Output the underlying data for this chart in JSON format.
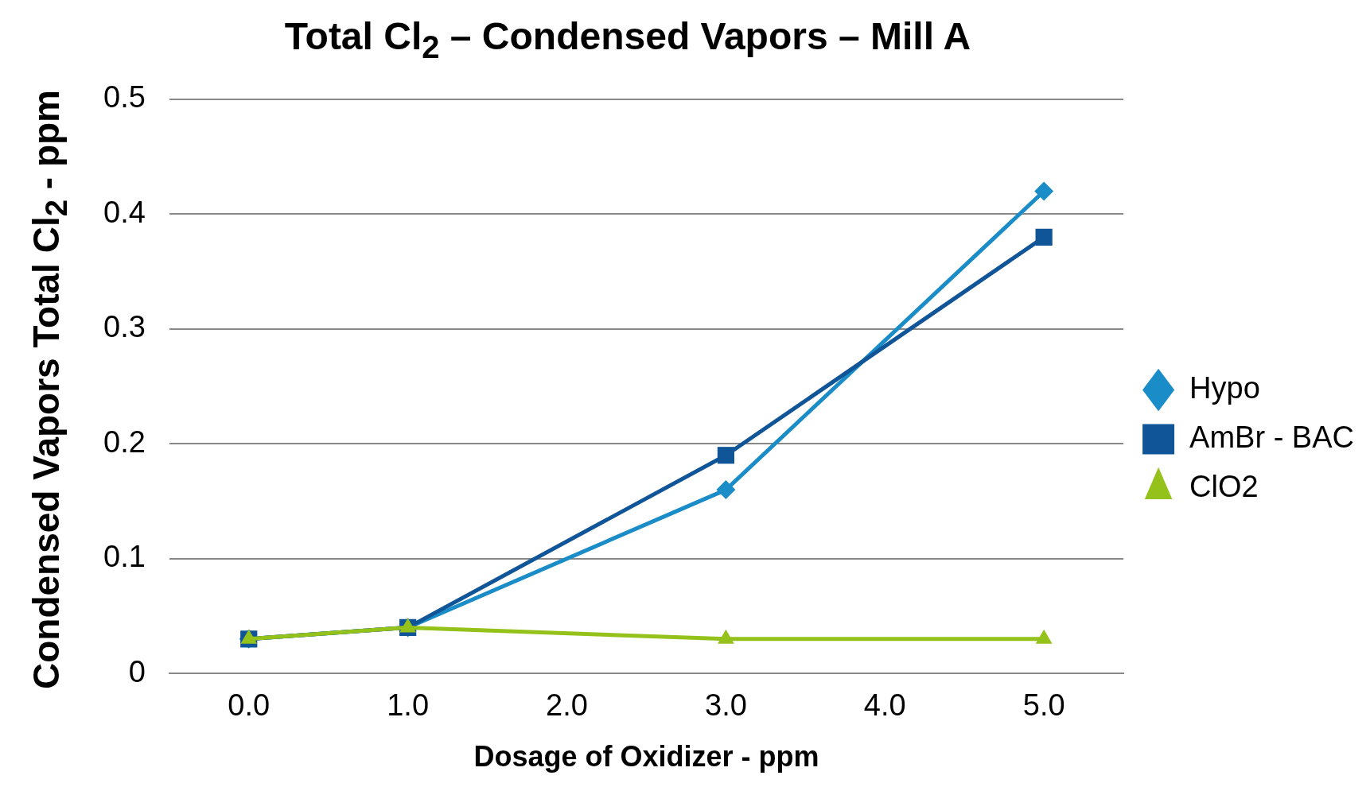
{
  "chart_data": {
    "type": "line",
    "title": "Total Cl$_{2}$ – Condensed Vapors – Mill A",
    "xlabel": "Dosage of Oxidizer - ppm",
    "ylabel": "Condensed Vapors Total Cl$_{2}$ - ppm",
    "x": [
      0,
      1,
      3,
      5
    ],
    "series": [
      {
        "name": "Hypo",
        "color": "#1a8cc8",
        "marker": "diamond",
        "values": [
          0.03,
          0.04,
          0.16,
          0.42
        ]
      },
      {
        "name": "AmBr - BAC",
        "color": "#0f5597",
        "marker": "square",
        "values": [
          0.03,
          0.04,
          0.19,
          0.38
        ]
      },
      {
        "name": "ClO2",
        "color": "#94c11a",
        "marker": "triangle",
        "values": [
          0.03,
          0.04,
          0.03,
          0.03
        ]
      }
    ],
    "xlim": [
      -0.5,
      5.5
    ],
    "xticks": [
      {
        "value": 0,
        "label": "0.0"
      },
      {
        "value": 1,
        "label": "1.0"
      },
      {
        "value": 2,
        "label": "2.0"
      },
      {
        "value": 3,
        "label": "3.0"
      },
      {
        "value": 4,
        "label": "4.0"
      },
      {
        "value": 5,
        "label": "5.0"
      }
    ],
    "ylim": [
      0,
      0.5
    ],
    "yticks": [
      0,
      0.1,
      0.2,
      0.3,
      0.4,
      0.5
    ],
    "grid": "y",
    "legend": "right",
    "line_style": "solid"
  }
}
